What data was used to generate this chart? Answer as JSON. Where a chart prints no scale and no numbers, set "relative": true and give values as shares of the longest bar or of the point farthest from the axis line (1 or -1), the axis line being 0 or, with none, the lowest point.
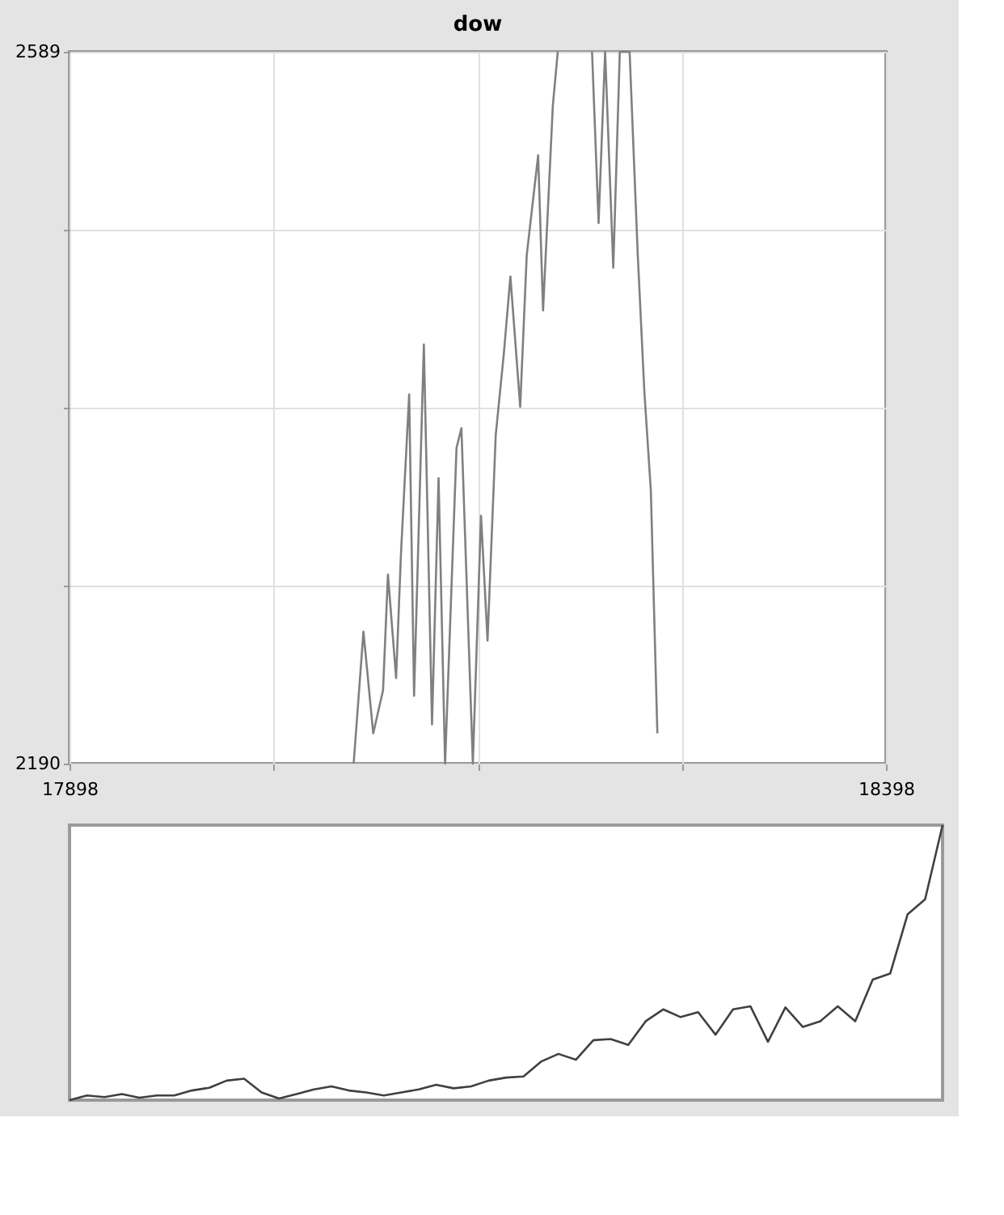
{
  "chart_data": [
    {
      "type": "line",
      "title": "dow",
      "color": "#808080",
      "grid": true,
      "marker": "none",
      "x": [
        18072,
        18078,
        18084,
        18090,
        18093,
        18098,
        18101,
        18106,
        18109,
        18115,
        18120,
        18124,
        18128,
        18135,
        18138,
        18145,
        18150,
        18154,
        18159,
        18164,
        18168,
        18174,
        18178,
        18185,
        18188,
        18194,
        18197,
        18200,
        18218,
        18222,
        18226,
        18231,
        18235,
        18241,
        18246,
        18250,
        18254,
        18258
      ],
      "values": [
        2190,
        2264,
        2207,
        2231,
        2296,
        2238,
        2308,
        2397,
        2228,
        2425,
        2212,
        2350,
        2190,
        2367,
        2378,
        2190,
        2329,
        2259,
        2374,
        2420,
        2463,
        2390,
        2475,
        2531,
        2444,
        2559,
        2589,
        null,
        2589,
        2493,
        2589,
        2468,
        2589,
        2589,
        2475,
        2399,
        2343,
        2207
      ],
      "xlim": [
        17898,
        18398
      ],
      "ylim": [
        2190,
        2589
      ],
      "xticks": [
        17898,
        {
          "value": 18023,
          "label": null
        },
        {
          "value": 18148,
          "label": null
        },
        {
          "value": 18273,
          "label": null
        },
        18398
      ],
      "yticks": [
        2190,
        {
          "value": 2289.75,
          "label": null
        },
        {
          "value": 2389.5,
          "label": null
        },
        {
          "value": 2489.25,
          "label": null
        },
        2589
      ]
    },
    {
      "type": "line",
      "relative": true,
      "color": "#404040",
      "tick_labels": false,
      "categories": [
        null,
        null,
        null,
        null,
        null,
        null,
        null,
        null,
        null,
        null,
        null,
        null,
        null,
        null,
        null,
        null,
        null,
        null,
        null,
        null,
        null,
        null,
        null,
        null,
        null,
        null,
        null,
        null,
        null,
        null,
        null,
        null,
        null,
        null,
        null,
        null,
        null,
        null,
        null,
        null,
        null,
        null,
        null,
        null,
        null,
        null,
        null,
        null,
        null,
        null,
        null
      ],
      "values": [
        0,
        0.017,
        0.011,
        0.022,
        0.009,
        0.017,
        0.017,
        0.035,
        0.045,
        0.071,
        0.078,
        0.028,
        0.006,
        0.022,
        0.039,
        0.05,
        0.035,
        0.028,
        0.017,
        0.028,
        0.039,
        0.056,
        0.043,
        0.05,
        0.071,
        0.082,
        0.086,
        0.14,
        0.168,
        0.147,
        0.218,
        0.222,
        0.201,
        0.287,
        0.33,
        0.302,
        0.32,
        0.238,
        0.33,
        0.341,
        0.212,
        0.337,
        0.266,
        0.287,
        0.341,
        0.287,
        0.438,
        0.46,
        0.676,
        0.73,
        1
      ]
    }
  ]
}
